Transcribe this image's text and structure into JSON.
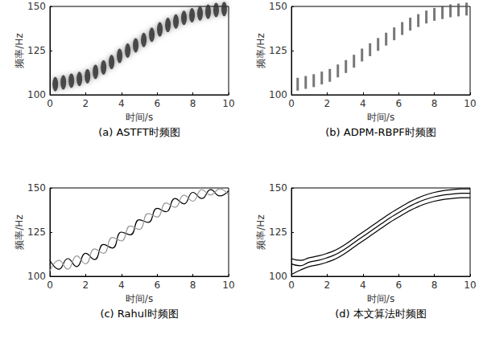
{
  "chart_data": [
    {
      "type": "scatter",
      "title": "(a) ASTFT时频图",
      "x_label": "时间/s",
      "y_label": "频率/Hz",
      "xlim": [
        0,
        10
      ],
      "ylim": [
        100,
        150
      ],
      "xticks": [
        0,
        2,
        4,
        6,
        8,
        10
      ],
      "yticks": [
        100,
        125,
        150
      ],
      "grid": false,
      "series": [
        {
          "color": "#333333",
          "marker": "blob",
          "x": [
            0.3,
            0.75,
            1.2,
            1.65,
            2.1,
            2.55,
            3.0,
            3.45,
            3.9,
            4.35,
            4.8,
            5.25,
            5.7,
            6.15,
            6.6,
            7.05,
            7.5,
            7.95,
            8.4,
            8.85,
            9.3,
            9.75
          ],
          "values": [
            106,
            107,
            108,
            109,
            110.5,
            113,
            115.5,
            118.5,
            122,
            125,
            128,
            131,
            134,
            137,
            139.5,
            141.5,
            143.5,
            145,
            146,
            147,
            148,
            148.5
          ]
        }
      ]
    },
    {
      "type": "scatter",
      "title": "(b) ADPM-RBPF时频图",
      "x_label": "时间/s",
      "y_label": "频率/Hz",
      "xlim": [
        0,
        10
      ],
      "ylim": [
        100,
        150
      ],
      "xticks": [
        0,
        2,
        4,
        6,
        8,
        10
      ],
      "yticks": [
        100,
        125,
        150
      ],
      "grid": false,
      "series": [
        {
          "color": "#555555",
          "marker": "dash",
          "x": [
            0.35,
            0.8,
            1.25,
            1.7,
            2.15,
            2.6,
            3.05,
            3.5,
            3.95,
            4.4,
            4.85,
            5.3,
            5.75,
            6.2,
            6.65,
            7.1,
            7.55,
            8.0,
            8.45,
            8.9,
            9.35,
            9.8
          ],
          "values": [
            106,
            107,
            108,
            109.5,
            111,
            113.5,
            116,
            119,
            122.5,
            125.5,
            128.5,
            131.5,
            134.5,
            137.5,
            140,
            142,
            144,
            145.5,
            146.5,
            147.5,
            148,
            148.5
          ]
        }
      ]
    },
    {
      "type": "line",
      "title": "(c) Rahul时频图",
      "x_label": "时间/s",
      "y_label": "频率/Hz",
      "xlim": [
        0,
        10
      ],
      "ylim": [
        100,
        150
      ],
      "xticks": [
        0,
        2,
        4,
        6,
        8,
        10
      ],
      "yticks": [
        100,
        125,
        150
      ],
      "grid": false,
      "series": [
        {
          "color": "#000000",
          "marker": "none",
          "line_style": "solid",
          "x": [
            0,
            0.5,
            1,
            1.5,
            2,
            2.5,
            3,
            3.5,
            4,
            4.5,
            5,
            5.5,
            6,
            6.5,
            7,
            7.5,
            8,
            8.5,
            9,
            9.5,
            10
          ],
          "values": [
            109,
            104,
            110,
            105.5,
            113,
            109.5,
            118,
            116,
            125,
            123.5,
            132,
            130.5,
            138.5,
            136.5,
            144,
            141,
            147.5,
            144,
            149,
            145.5,
            148.5
          ]
        },
        {
          "color": "#999999",
          "marker": "none",
          "line_style": "solid",
          "x": [
            0,
            0.5,
            1,
            1.5,
            2,
            2.5,
            3,
            3.5,
            4,
            4.5,
            5,
            5.5,
            6,
            6.5,
            7,
            7.5,
            8,
            8.5,
            9,
            9.5,
            10
          ],
          "values": [
            103,
            109,
            104,
            111.5,
            107,
            115.5,
            113,
            122,
            120,
            128.5,
            126.5,
            135.5,
            133.5,
            141.5,
            139,
            146,
            142.5,
            149,
            146,
            149.5,
            146
          ]
        }
      ]
    },
    {
      "type": "line",
      "title": "(d) 本文算法时频图",
      "x_label": "时间/s",
      "y_label": "频率/Hz",
      "xlim": [
        0,
        10
      ],
      "ylim": [
        100,
        150
      ],
      "xticks": [
        0,
        2,
        4,
        6,
        8,
        10
      ],
      "yticks": [
        100,
        125,
        150
      ],
      "grid": false,
      "series": [
        {
          "color": "#000000",
          "marker": "none",
          "line_style": "solid",
          "x": [
            0,
            0.5,
            1,
            1.5,
            2,
            2.5,
            3,
            3.5,
            4,
            4.5,
            5,
            5.5,
            6,
            6.5,
            7,
            7.5,
            8,
            8.5,
            9,
            9.5,
            10
          ],
          "values": [
            110,
            109,
            110.5,
            111.5,
            113,
            115,
            118,
            121.5,
            125,
            128.5,
            132,
            135.5,
            138.5,
            141.5,
            144,
            146,
            147.5,
            148.5,
            149,
            149.5,
            149.5
          ]
        },
        {
          "color": "#000000",
          "marker": "none",
          "line_style": "solid",
          "x": [
            0,
            0.5,
            1,
            1.5,
            2,
            2.5,
            3,
            3.5,
            4,
            4.5,
            5,
            5.5,
            6,
            6.5,
            7,
            7.5,
            8,
            8.5,
            9,
            9.5,
            10
          ],
          "values": [
            107,
            106,
            108,
            109,
            110.5,
            112.5,
            115.5,
            119,
            122.5,
            126,
            129.5,
            133,
            136,
            139,
            141.5,
            143.5,
            145,
            146,
            146.5,
            147,
            147
          ]
        },
        {
          "color": "#000000",
          "marker": "none",
          "line_style": "solid",
          "x": [
            0,
            0.5,
            1,
            1.5,
            2,
            2.5,
            3,
            3.5,
            4,
            4.5,
            5,
            5.5,
            6,
            6.5,
            7,
            7.5,
            8,
            8.5,
            9,
            9.5,
            10
          ],
          "values": [
            101,
            103.5,
            105.5,
            106.5,
            108,
            110,
            113,
            116.5,
            120,
            123.5,
            127,
            130.5,
            133.5,
            136.5,
            139,
            141,
            142.5,
            143.5,
            144,
            144.5,
            144.5
          ]
        }
      ]
    }
  ]
}
